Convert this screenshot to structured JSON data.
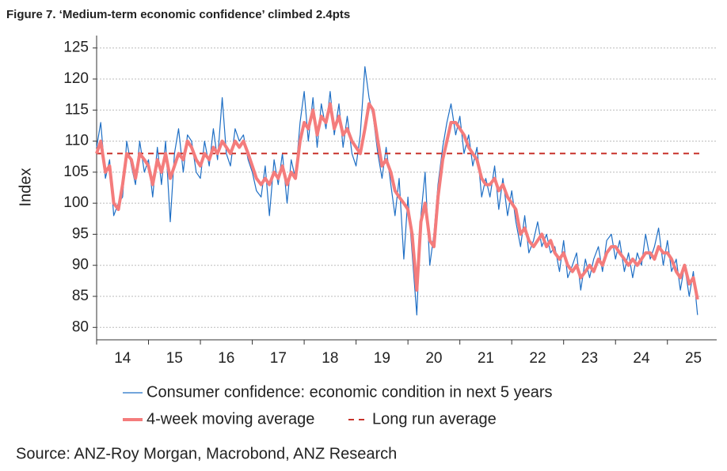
{
  "chart_data": {
    "type": "line",
    "title": "Figure 7. ‘Medium-term economic confidence’ climbed 2.4pts",
    "y_label": "Index",
    "source": "Source: ANZ-Roy Morgan, Macrobond, ANZ Research",
    "xlim": [
      2014,
      2025.95
    ],
    "ylim": [
      78,
      127
    ],
    "yticks": [
      80,
      85,
      90,
      95,
      100,
      105,
      110,
      115,
      120,
      125
    ],
    "xticks": [
      {
        "value": 2014,
        "label": "14"
      },
      {
        "value": 2015,
        "label": "15"
      },
      {
        "value": 2016,
        "label": "16"
      },
      {
        "value": 2017,
        "label": "17"
      },
      {
        "value": 2018,
        "label": "18"
      },
      {
        "value": 2019,
        "label": "19"
      },
      {
        "value": 2020,
        "label": "20"
      },
      {
        "value": 2021,
        "label": "21"
      },
      {
        "value": 2022,
        "label": "22"
      },
      {
        "value": 2023,
        "label": "23"
      },
      {
        "value": 2024,
        "label": "24"
      },
      {
        "value": 2025,
        "label": "25"
      }
    ],
    "grid": true,
    "x": [
      2014.0,
      2014.08,
      2014.17,
      2014.25,
      2014.33,
      2014.42,
      2014.5,
      2014.58,
      2014.67,
      2014.75,
      2014.83,
      2014.92,
      2015.0,
      2015.08,
      2015.17,
      2015.25,
      2015.33,
      2015.42,
      2015.5,
      2015.58,
      2015.67,
      2015.75,
      2015.83,
      2015.92,
      2016.0,
      2016.08,
      2016.17,
      2016.25,
      2016.33,
      2016.42,
      2016.5,
      2016.58,
      2016.67,
      2016.75,
      2016.83,
      2016.92,
      2017.0,
      2017.08,
      2017.17,
      2017.25,
      2017.33,
      2017.42,
      2017.5,
      2017.58,
      2017.67,
      2017.75,
      2017.83,
      2017.92,
      2018.0,
      2018.08,
      2018.17,
      2018.25,
      2018.33,
      2018.42,
      2018.5,
      2018.58,
      2018.67,
      2018.75,
      2018.83,
      2018.92,
      2019.0,
      2019.08,
      2019.17,
      2019.25,
      2019.33,
      2019.42,
      2019.5,
      2019.58,
      2019.67,
      2019.75,
      2019.83,
      2019.92,
      2020.0,
      2020.08,
      2020.17,
      2020.25,
      2020.33,
      2020.42,
      2020.5,
      2020.58,
      2020.67,
      2020.75,
      2020.83,
      2020.92,
      2021.0,
      2021.08,
      2021.17,
      2021.25,
      2021.33,
      2021.42,
      2021.5,
      2021.58,
      2021.67,
      2021.75,
      2021.83,
      2021.92,
      2022.0,
      2022.08,
      2022.17,
      2022.25,
      2022.33,
      2022.42,
      2022.5,
      2022.58,
      2022.67,
      2022.75,
      2022.83,
      2022.92,
      2023.0,
      2023.08,
      2023.17,
      2023.25,
      2023.33,
      2023.42,
      2023.5,
      2023.58,
      2023.67,
      2023.75,
      2023.83,
      2023.92,
      2024.0,
      2024.08,
      2024.17,
      2024.25,
      2024.33,
      2024.42,
      2024.5,
      2024.58,
      2024.67,
      2024.75,
      2024.83,
      2024.92,
      2025.0,
      2025.08,
      2025.17,
      2025.25,
      2025.33,
      2025.42,
      2025.5,
      2025.58
    ],
    "series": [
      {
        "name": "Consumer confidence: economic condition in next 5 years",
        "color": "#1f6fc5",
        "width": 1.2,
        "values": [
          109,
          113,
          104,
          107,
          98,
          100,
          101,
          110,
          106,
          103,
          110,
          105,
          107,
          101,
          109,
          103,
          110,
          97,
          108,
          112,
          105,
          111,
          110,
          105,
          104,
          110,
          106,
          112,
          107,
          117,
          108,
          106,
          112,
          110,
          111,
          107,
          105,
          102,
          101,
          106,
          98,
          107,
          103,
          108,
          100,
          107,
          104,
          113,
          118,
          110,
          117,
          109,
          116,
          112,
          118,
          111,
          116,
          109,
          114,
          108,
          106,
          111,
          122,
          117,
          114,
          108,
          104,
          109,
          103,
          98,
          104,
          91,
          101,
          92,
          82,
          98,
          105,
          90,
          95,
          103,
          109,
          113,
          116,
          111,
          114,
          108,
          111,
          106,
          109,
          101,
          104,
          101,
          106,
          99,
          104,
          98,
          102,
          97,
          93,
          98,
          92,
          94,
          97,
          93,
          95,
          92,
          93,
          89,
          94,
          88,
          90,
          92,
          86,
          91,
          88,
          91,
          93,
          89,
          94,
          95,
          91,
          94,
          89,
          92,
          88,
          92,
          90,
          95,
          91,
          93,
          96,
          90,
          94,
          89,
          91,
          86,
          90,
          85,
          89,
          82
        ]
      },
      {
        "name": "4-week moving average",
        "color": "#f47c7c",
        "width": 4,
        "values": [
          108,
          110,
          105,
          106,
          100,
          99,
          103,
          108,
          107,
          104,
          108,
          107,
          106,
          103,
          107,
          105,
          108,
          104,
          106,
          108,
          107,
          110,
          109,
          107,
          106,
          108,
          107,
          109,
          108,
          110,
          109,
          108,
          110,
          109,
          110,
          108,
          106,
          104,
          103,
          104,
          103,
          105,
          104,
          106,
          103,
          105,
          104,
          110,
          113,
          112,
          115,
          111,
          114,
          113,
          116,
          112,
          114,
          111,
          112,
          110,
          109,
          108,
          112,
          116,
          115,
          110,
          106,
          107,
          105,
          102,
          101,
          100,
          99,
          95,
          86,
          97,
          100,
          94,
          93,
          101,
          107,
          110,
          113,
          113,
          112,
          111,
          109,
          108,
          107,
          104,
          103,
          103,
          104,
          102,
          103,
          101,
          100,
          99,
          95,
          96,
          94,
          93,
          94,
          95,
          93,
          94,
          92,
          91,
          92,
          90,
          89,
          90,
          88,
          89,
          90,
          89,
          91,
          90,
          92,
          93,
          93,
          92,
          91,
          90,
          91,
          90,
          91,
          92,
          92,
          91,
          93,
          92,
          92,
          91,
          89,
          88,
          90,
          87,
          88,
          84.5
        ]
      },
      {
        "name": "Long run average",
        "color": "#c8322a",
        "width": 2,
        "dashed": true,
        "x": [
          2014,
          2025.7
        ],
        "values": [
          108,
          108
        ]
      }
    ]
  }
}
